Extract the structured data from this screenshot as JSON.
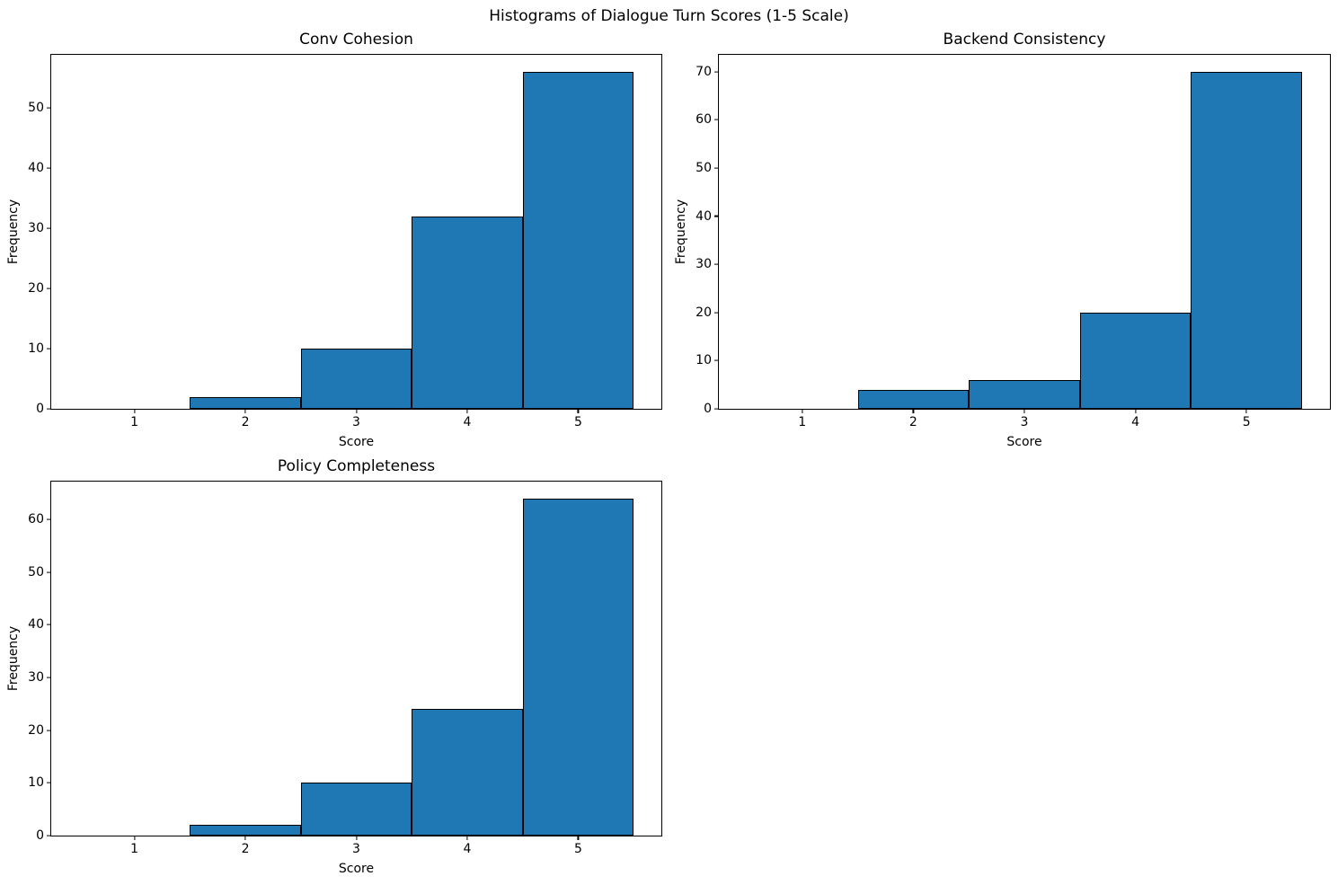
{
  "figure": {
    "title": "Histograms of Dialogue Turn Scores (1-5 Scale)",
    "background": "#ffffff"
  },
  "colors": {
    "bar_fill": "#1f77b4",
    "bar_edge": "#000000",
    "axis": "#000000",
    "text": "#000000"
  },
  "chart_data": [
    {
      "type": "bar",
      "subtype": "histogram",
      "title": "Conv Cohesion",
      "xlabel": "Score",
      "ylabel": "Frequency",
      "categories": [
        1,
        2,
        3,
        4,
        5
      ],
      "values": [
        0,
        2,
        10,
        32,
        56
      ],
      "bin_width": 1,
      "xlim": [
        0.25,
        5.75
      ],
      "ylim": [
        0,
        58.8
      ],
      "yticks": [
        0,
        10,
        20,
        30,
        40,
        50
      ],
      "grid": false,
      "legend": null
    },
    {
      "type": "bar",
      "subtype": "histogram",
      "title": "Backend Consistency",
      "xlabel": "Score",
      "ylabel": "Frequency",
      "categories": [
        1,
        2,
        3,
        4,
        5
      ],
      "values": [
        0,
        4,
        6,
        20,
        70
      ],
      "bin_width": 1,
      "xlim": [
        0.25,
        5.75
      ],
      "ylim": [
        0,
        73.5
      ],
      "yticks": [
        0,
        10,
        20,
        30,
        40,
        50,
        60,
        70
      ],
      "grid": false,
      "legend": null
    },
    {
      "type": "bar",
      "subtype": "histogram",
      "title": "Policy Completeness",
      "xlabel": "Score",
      "ylabel": "Frequency",
      "categories": [
        1,
        2,
        3,
        4,
        5
      ],
      "values": [
        0,
        2,
        10,
        24,
        64
      ],
      "bin_width": 1,
      "xlim": [
        0.25,
        5.75
      ],
      "ylim": [
        0,
        67.2
      ],
      "yticks": [
        0,
        10,
        20,
        30,
        40,
        50,
        60
      ],
      "grid": false,
      "legend": null
    }
  ]
}
